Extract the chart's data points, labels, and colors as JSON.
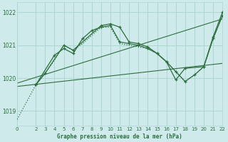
{
  "bg_color": "#ceeaea",
  "grid_color": "#aed4d4",
  "line_color": "#2d6e3e",
  "title": "Graphe pression niveau de la mer (hPa)",
  "xlim": [
    0,
    22
  ],
  "ylim": [
    1018.55,
    1022.3
  ],
  "yticks": [
    1019,
    1020,
    1021,
    1022
  ],
  "xticks": [
    0,
    2,
    3,
    4,
    5,
    6,
    7,
    8,
    9,
    10,
    11,
    12,
    13,
    14,
    15,
    16,
    17,
    18,
    19,
    20,
    21,
    22
  ],
  "series": [
    {
      "x": [
        0,
        2,
        3,
        4,
        5,
        6,
        7,
        8,
        9,
        10,
        11,
        12,
        13,
        14,
        15,
        16,
        17,
        18,
        19,
        20,
        21,
        22
      ],
      "y": [
        1018.75,
        1019.8,
        1020.15,
        1020.55,
        1021.0,
        1020.85,
        1021.05,
        1021.3,
        1021.55,
        1021.55,
        1021.05,
        1021.0,
        1020.95,
        1020.9,
        1020.75,
        1020.5,
        1020.2,
        1019.9,
        1020.1,
        1020.35,
        1021.2,
        1021.9
      ],
      "linestyle": "dotted",
      "marker": null,
      "linewidth": 0.9
    },
    {
      "x": [
        2,
        3,
        5,
        6,
        9,
        10,
        11,
        12,
        13,
        14,
        15,
        16,
        17,
        18,
        20,
        21,
        22
      ],
      "y": [
        1019.8,
        1020.15,
        1021.0,
        1020.85,
        1021.6,
        1021.65,
        1021.55,
        1021.1,
        1021.05,
        1020.95,
        1020.75,
        1020.5,
        1019.95,
        1020.3,
        1020.35,
        1021.25,
        1022.0
      ],
      "linestyle": "solid",
      "marker": "+",
      "linewidth": 0.9
    },
    {
      "x": [
        2,
        4,
        5,
        6,
        7,
        8,
        9,
        10,
        11,
        12,
        13,
        14,
        15,
        16,
        17,
        18,
        19,
        20,
        21,
        22
      ],
      "y": [
        1019.8,
        1020.7,
        1020.9,
        1020.75,
        1021.2,
        1021.45,
        1021.55,
        1021.6,
        1021.1,
        1021.05,
        1021.0,
        1020.9,
        1020.75,
        1020.5,
        1020.2,
        1019.9,
        1020.1,
        1020.35,
        1021.2,
        1021.9
      ],
      "linestyle": "solid",
      "marker": "+",
      "linewidth": 0.9
    }
  ],
  "trend_lines": [
    {
      "x": [
        0,
        22
      ],
      "y": [
        1019.85,
        1021.8
      ]
    },
    {
      "x": [
        0,
        22
      ],
      "y": [
        1019.75,
        1020.45
      ]
    }
  ]
}
